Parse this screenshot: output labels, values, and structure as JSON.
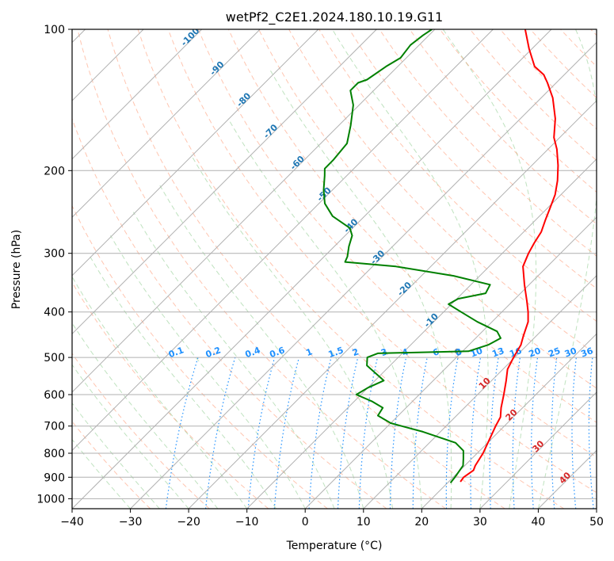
{
  "chart_data": {
    "type": "line",
    "title": "wetPf2_C2E1.2024.180.10.19.G11",
    "xlabel": "Temperature (°C)",
    "ylabel": "Pressure (hPa)",
    "xlim": [
      -40,
      50
    ],
    "ylim": [
      1050,
      100
    ],
    "y_scale": "log",
    "skew": true,
    "x_ticks": [
      -40,
      -30,
      -20,
      -10,
      0,
      10,
      20,
      30,
      40,
      50
    ],
    "y_ticks": [
      100,
      200,
      300,
      400,
      500,
      600,
      700,
      800,
      900,
      1000
    ],
    "grid": true,
    "series": [
      {
        "color": "#ff0000",
        "points": [
          [
            920,
            22.0
          ],
          [
            900,
            21.8
          ],
          [
            870,
            22.3
          ],
          [
            850,
            21.8
          ],
          [
            800,
            21.0
          ],
          [
            750,
            19.8
          ],
          [
            700,
            18.5
          ],
          [
            670,
            17.8
          ],
          [
            640,
            16.3
          ],
          [
            600,
            14.5
          ],
          [
            560,
            12.5
          ],
          [
            530,
            10.8
          ],
          [
            500,
            9.8
          ],
          [
            470,
            8.9
          ],
          [
            450,
            7.8
          ],
          [
            420,
            6.2
          ],
          [
            400,
            4.5
          ],
          [
            380,
            2.5
          ],
          [
            350,
            -0.8
          ],
          [
            320,
            -4.2
          ],
          [
            300,
            -5.5
          ],
          [
            285,
            -6.3
          ],
          [
            270,
            -7.0
          ],
          [
            255,
            -8.3
          ],
          [
            240,
            -9.6
          ],
          [
            225,
            -11.0
          ],
          [
            210,
            -13.0
          ],
          [
            195,
            -15.5
          ],
          [
            180,
            -18.5
          ],
          [
            170,
            -21.0
          ],
          [
            155,
            -24.0
          ],
          [
            140,
            -28.0
          ],
          [
            130,
            -31.5
          ],
          [
            125,
            -33.5
          ],
          [
            120,
            -36.5
          ],
          [
            110,
            -40.5
          ],
          [
            100,
            -44.5
          ]
        ]
      },
      {
        "color": "#008000",
        "points": [
          [
            925,
            20.5
          ],
          [
            900,
            20.3
          ],
          [
            850,
            19.7
          ],
          [
            820,
            18.5
          ],
          [
            790,
            17.2
          ],
          [
            760,
            14.5
          ],
          [
            720,
            7.0
          ],
          [
            690,
            0.0
          ],
          [
            665,
            -3.5
          ],
          [
            640,
            -4.0
          ],
          [
            620,
            -7.0
          ],
          [
            600,
            -10.8
          ],
          [
            580,
            -10.0
          ],
          [
            560,
            -8.5
          ],
          [
            540,
            -11.2
          ],
          [
            520,
            -14.0
          ],
          [
            500,
            -15.3
          ],
          [
            490,
            -14.2
          ],
          [
            485,
            1.0
          ],
          [
            470,
            3.3
          ],
          [
            455,
            4.3
          ],
          [
            440,
            2.5
          ],
          [
            420,
            -2.5
          ],
          [
            400,
            -7.0
          ],
          [
            385,
            -10.5
          ],
          [
            375,
            -9.8
          ],
          [
            365,
            -6.0
          ],
          [
            350,
            -6.7
          ],
          [
            335,
            -14.5
          ],
          [
            320,
            -26.0
          ],
          [
            313,
            -35.5
          ],
          [
            305,
            -36.0
          ],
          [
            290,
            -37.5
          ],
          [
            275,
            -38.8
          ],
          [
            265,
            -40.5
          ],
          [
            250,
            -45.5
          ],
          [
            235,
            -49.0
          ],
          [
            220,
            -51.5
          ],
          [
            205,
            -53.8
          ],
          [
            198,
            -55.0
          ],
          [
            190,
            -55.0
          ],
          [
            175,
            -55.5
          ],
          [
            160,
            -58.0
          ],
          [
            145,
            -61.0
          ],
          [
            135,
            -64.0
          ],
          [
            130,
            -64.0
          ],
          [
            128,
            -63.0
          ],
          [
            120,
            -62.0
          ],
          [
            115,
            -61.0
          ],
          [
            108,
            -61.5
          ],
          [
            103,
            -61.0
          ],
          [
            100,
            -60.5
          ]
        ]
      }
    ],
    "isotherm_labels": [
      "-100",
      "-90",
      "-80",
      "-70",
      "-60",
      "-50",
      "-40",
      "-30",
      "-20",
      "-10",
      "0",
      "10",
      "20",
      "30",
      "40"
    ],
    "mixing_ratio_labels": [
      "0.1",
      "0.2",
      "0.4",
      "0.6",
      "1",
      "1.5",
      "2",
      "3",
      "4",
      "6",
      "8",
      "10",
      "13",
      "16",
      "20",
      "25",
      "30",
      "36"
    ],
    "colors": {
      "temperature": "#ff0000",
      "dewpoint": "#008000",
      "isotherm_label_cold": "#1f77b4",
      "isotherm_label_zero": "#808080",
      "isotherm_label_warm": "#d62728",
      "mixing_ratio": "#1e90ff",
      "dry_adiabat": "#ff7f50",
      "moist_adiabat": "#2ca02c",
      "grid": "#b0b0b0"
    }
  }
}
